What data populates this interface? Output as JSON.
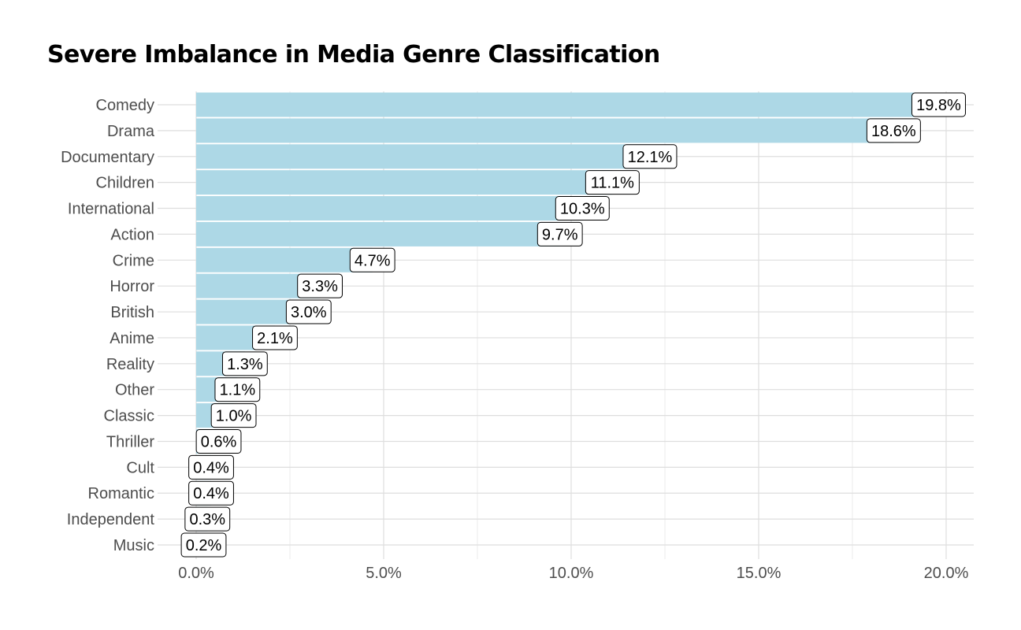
{
  "chart_data": {
    "type": "bar",
    "orientation": "horizontal",
    "title": "Severe Imbalance in Media Genre Classification",
    "xlabel": "",
    "ylabel": "",
    "xlim": [
      0,
      20.7
    ],
    "ticks": [
      0,
      5,
      10,
      15,
      20
    ],
    "tick_labels": [
      "0.0%",
      "5.0%",
      "10.0%",
      "15.0%",
      "20.0%"
    ],
    "grid": true,
    "bar_color": "#add8e6",
    "categories": [
      "Comedy",
      "Drama",
      "Documentary",
      "Children",
      "International",
      "Action",
      "Crime",
      "Horror",
      "British",
      "Anime",
      "Reality",
      "Other",
      "Classic",
      "Thriller",
      "Cult",
      "Romantic",
      "Independent",
      "Music"
    ],
    "values": [
      19.8,
      18.6,
      12.1,
      11.1,
      10.3,
      9.7,
      4.7,
      3.3,
      3.0,
      2.1,
      1.3,
      1.1,
      1.0,
      0.6,
      0.4,
      0.4,
      0.3,
      0.2
    ],
    "data_labels": [
      "19.8%",
      "18.6%",
      "12.1%",
      "11.1%",
      "10.3%",
      "9.7%",
      "4.7%",
      "3.3%",
      "3.0%",
      "2.1%",
      "1.3%",
      "1.1%",
      "1.0%",
      "0.6%",
      "0.4%",
      "0.4%",
      "0.3%",
      "0.2%"
    ]
  }
}
